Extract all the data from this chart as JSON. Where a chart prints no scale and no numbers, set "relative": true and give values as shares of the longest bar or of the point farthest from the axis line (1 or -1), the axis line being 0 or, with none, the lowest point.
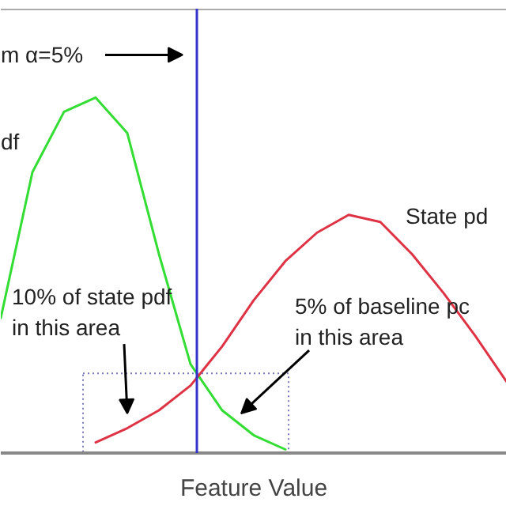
{
  "chart_data": {
    "type": "line",
    "relative": true,
    "xlabel": "Feature Value",
    "categories": [
      null,
      null,
      null,
      null,
      null,
      null,
      null,
      null,
      null,
      null,
      null,
      null,
      null,
      null,
      null,
      null,
      null
    ],
    "series": [
      {
        "color": "#33dd33",
        "values": [
          0.38,
          0.79,
          0.96,
          1,
          0.9,
          0.56,
          0.25,
          0.12,
          0.05,
          0.01,
          null,
          null,
          null,
          null,
          null,
          null,
          null
        ]
      },
      {
        "color": "#dd3344",
        "values": [
          null,
          null,
          null,
          0.03,
          0.07,
          0.12,
          0.19,
          0.3,
          0.43,
          0.54,
          0.62,
          0.67,
          0.65,
          0.56,
          0.45,
          0.33,
          0.2
        ]
      }
    ],
    "annotations": [
      "m α=5%",
      "df",
      "State pd",
      "10% of state pdf\nin this area",
      "5% of baseline pc\nin this area"
    ],
    "grid": false,
    "tick_labels": false
  }
}
